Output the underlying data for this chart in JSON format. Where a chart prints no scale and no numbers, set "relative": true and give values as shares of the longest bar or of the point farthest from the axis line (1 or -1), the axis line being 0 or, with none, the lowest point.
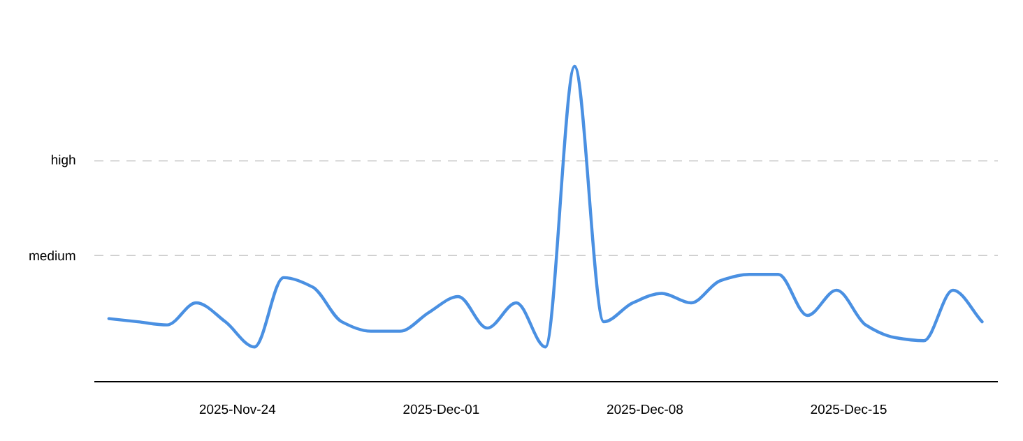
{
  "chart_data": {
    "type": "line",
    "relative": true,
    "color": "#4a90e2",
    "line_style": "solid",
    "x": [
      "2025-11-19T14:00",
      "2025-11-20T14:00",
      "2025-11-21T14:00",
      "2025-11-22T14:00",
      "2025-11-23T14:00",
      "2025-11-24T14:00",
      "2025-11-25T14:00",
      "2025-11-26T14:00",
      "2025-11-27T14:00",
      "2025-11-28T14:00",
      "2025-11-29T14:00",
      "2025-11-30T14:00",
      "2025-12-01T14:00",
      "2025-12-02T14:00",
      "2025-12-03T14:00",
      "2025-12-04T14:00",
      "2025-12-05T14:00",
      "2025-12-06T14:00",
      "2025-12-07T14:00",
      "2025-12-08T14:00",
      "2025-12-09T14:00",
      "2025-12-10T14:00",
      "2025-12-11T14:00",
      "2025-12-12T14:00",
      "2025-12-13T14:00",
      "2025-12-14T14:00",
      "2025-12-15T14:00",
      "2025-12-16T14:00",
      "2025-12-17T14:00",
      "2025-12-18T14:00",
      "2025-12-19T14:00"
    ],
    "values": [
      0.2,
      0.19,
      0.18,
      0.25,
      0.19,
      0.11,
      0.33,
      0.3,
      0.19,
      0.16,
      0.16,
      0.22,
      0.27,
      0.17,
      0.25,
      0.11,
      1,
      0.19,
      0.25,
      0.28,
      0.25,
      0.32,
      0.34,
      0.34,
      0.21,
      0.29,
      0.18,
      0.14,
      0.13,
      0.29,
      0.19
    ],
    "xlim": [
      "2025-11-19T02:00",
      "2025-12-20T03:00"
    ],
    "xticks": [
      {
        "value": "2025-11-24",
        "label": "2025-Nov-24"
      },
      {
        "value": "2025-12-01",
        "label": "2025-Dec-01"
      },
      {
        "value": "2025-12-08",
        "label": "2025-Dec-08"
      },
      {
        "value": "2025-12-15",
        "label": "2025-Dec-15"
      }
    ],
    "ref_lines": [
      {
        "axis": "y",
        "value": 0.4,
        "label": "medium",
        "color": "#bbbbbb",
        "line_style": "dashed"
      },
      {
        "axis": "y",
        "value": 0.7,
        "label": "high",
        "color": "#bbbbbb",
        "line_style": "dashed"
      }
    ]
  }
}
